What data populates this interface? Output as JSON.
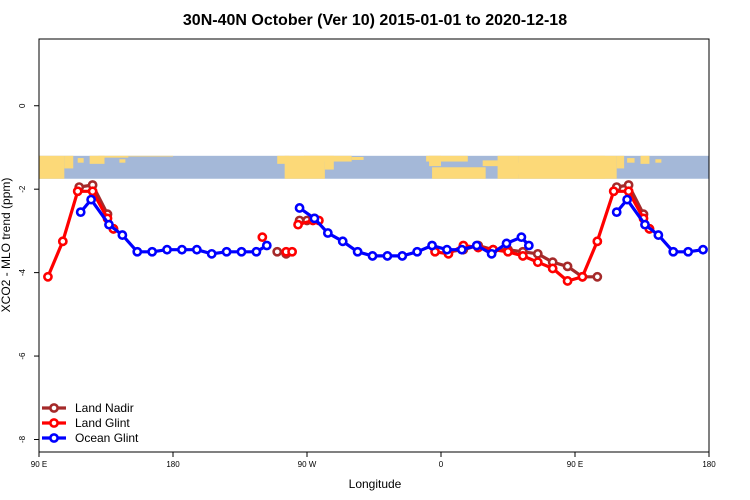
{
  "chart_data": {
    "type": "line",
    "title": "30N-40N October (Ver 10)   2015-01-01 to 2020-12-18",
    "xlabel": "Longitude",
    "ylabel": "XCO2 - MLO trend (ppm)",
    "xlim": [
      90,
      540
    ],
    "ylim": [
      -8.3,
      1.6
    ],
    "grid": false,
    "legend_position": "bottom-left",
    "x_ticks": [
      {
        "value": 90,
        "label": "90 E"
      },
      {
        "value": 180,
        "label": "180"
      },
      {
        "value": 270,
        "label": "90 W"
      },
      {
        "value": 360,
        "label": "0"
      },
      {
        "value": 450,
        "label": "90 E"
      },
      {
        "value": 540,
        "label": "180"
      }
    ],
    "y_ticks": [
      {
        "value": 0,
        "label": "0"
      },
      {
        "value": -2,
        "label": "-2"
      },
      {
        "value": -4,
        "label": "-4"
      },
      {
        "value": -6,
        "label": "-6"
      },
      {
        "value": -8,
        "label": "-8"
      }
    ],
    "map_strip": {
      "ymin": -1.75,
      "ymax": -1.2,
      "ocean_color": "#a4b8d8",
      "land_color": "#fcd978"
    },
    "series": [
      {
        "name": "Land Nadir",
        "color": "#a52a2a",
        "segments": [
          [
            [
              117,
              -1.95
            ],
            [
              126,
              -1.9
            ],
            [
              136,
              -2.6
            ],
            [
              140,
              -2.95
            ]
          ],
          [
            [
              250,
              -3.5
            ],
            [
              256,
              -3.55
            ]
          ],
          [
            [
              265,
              -2.75
            ],
            [
              270,
              -2.75
            ],
            [
              275,
              -2.7
            ]
          ],
          [
            [
              365,
              -3.5
            ],
            [
              375,
              -3.45
            ],
            [
              385,
              -3.35
            ],
            [
              395,
              -3.45
            ],
            [
              405,
              -3.45
            ],
            [
              415,
              -3.5
            ],
            [
              425,
              -3.55
            ],
            [
              435,
              -3.75
            ],
            [
              445,
              -3.85
            ],
            [
              455,
              -4.1
            ],
            [
              465,
              -4.1
            ]
          ],
          [
            [
              478,
              -1.95
            ],
            [
              486,
              -1.9
            ],
            [
              496,
              -2.6
            ],
            [
              500,
              -2.95
            ]
          ]
        ]
      },
      {
        "name": "Land Glint",
        "color": "#ff0000",
        "segments": [
          [
            [
              96,
              -4.1
            ],
            [
              106,
              -3.25
            ],
            [
              116,
              -2.05
            ],
            [
              126,
              -2.05
            ],
            [
              136,
              -2.7
            ],
            [
              140,
              -2.95
            ]
          ],
          [
            [
              240,
              -3.15
            ]
          ],
          [
            [
              256,
              -3.5
            ],
            [
              260,
              -3.5
            ]
          ],
          [
            [
              264,
              -2.85
            ],
            [
              274,
              -2.75
            ],
            [
              278,
              -2.75
            ]
          ],
          [
            [
              356,
              -3.5
            ],
            [
              365,
              -3.55
            ],
            [
              375,
              -3.35
            ],
            [
              385,
              -3.4
            ],
            [
              395,
              -3.45
            ],
            [
              405,
              -3.5
            ],
            [
              415,
              -3.6
            ],
            [
              425,
              -3.75
            ],
            [
              435,
              -3.9
            ],
            [
              445,
              -4.2
            ],
            [
              455,
              -4.1
            ],
            [
              465,
              -3.25
            ],
            [
              476,
              -2.05
            ],
            [
              486,
              -2.05
            ],
            [
              496,
              -2.7
            ],
            [
              500,
              -2.95
            ]
          ]
        ]
      },
      {
        "name": "Ocean Glint",
        "color": "#0000ff",
        "segments": [
          [
            [
              118,
              -2.55
            ],
            [
              125,
              -2.25
            ],
            [
              137,
              -2.85
            ],
            [
              146,
              -3.1
            ],
            [
              156,
              -3.5
            ],
            [
              166,
              -3.5
            ],
            [
              176,
              -3.45
            ],
            [
              186,
              -3.45
            ],
            [
              196,
              -3.45
            ],
            [
              206,
              -3.55
            ],
            [
              216,
              -3.5
            ],
            [
              226,
              -3.5
            ],
            [
              236,
              -3.5
            ],
            [
              243,
              -3.35
            ]
          ],
          [
            [
              265,
              -2.45
            ],
            [
              275,
              -2.7
            ],
            [
              284,
              -3.05
            ],
            [
              294,
              -3.25
            ],
            [
              304,
              -3.5
            ],
            [
              314,
              -3.6
            ],
            [
              324,
              -3.6
            ],
            [
              334,
              -3.6
            ],
            [
              344,
              -3.5
            ],
            [
              354,
              -3.35
            ],
            [
              364,
              -3.45
            ],
            [
              374,
              -3.45
            ],
            [
              384,
              -3.35
            ],
            [
              394,
              -3.55
            ],
            [
              404,
              -3.3
            ],
            [
              414,
              -3.15
            ],
            [
              419,
              -3.35
            ]
          ],
          [
            [
              478,
              -2.55
            ],
            [
              485,
              -2.25
            ],
            [
              497,
              -2.85
            ],
            [
              506,
              -3.1
            ],
            [
              516,
              -3.5
            ],
            [
              526,
              -3.5
            ],
            [
              536,
              -3.45
            ]
          ]
        ]
      }
    ]
  }
}
